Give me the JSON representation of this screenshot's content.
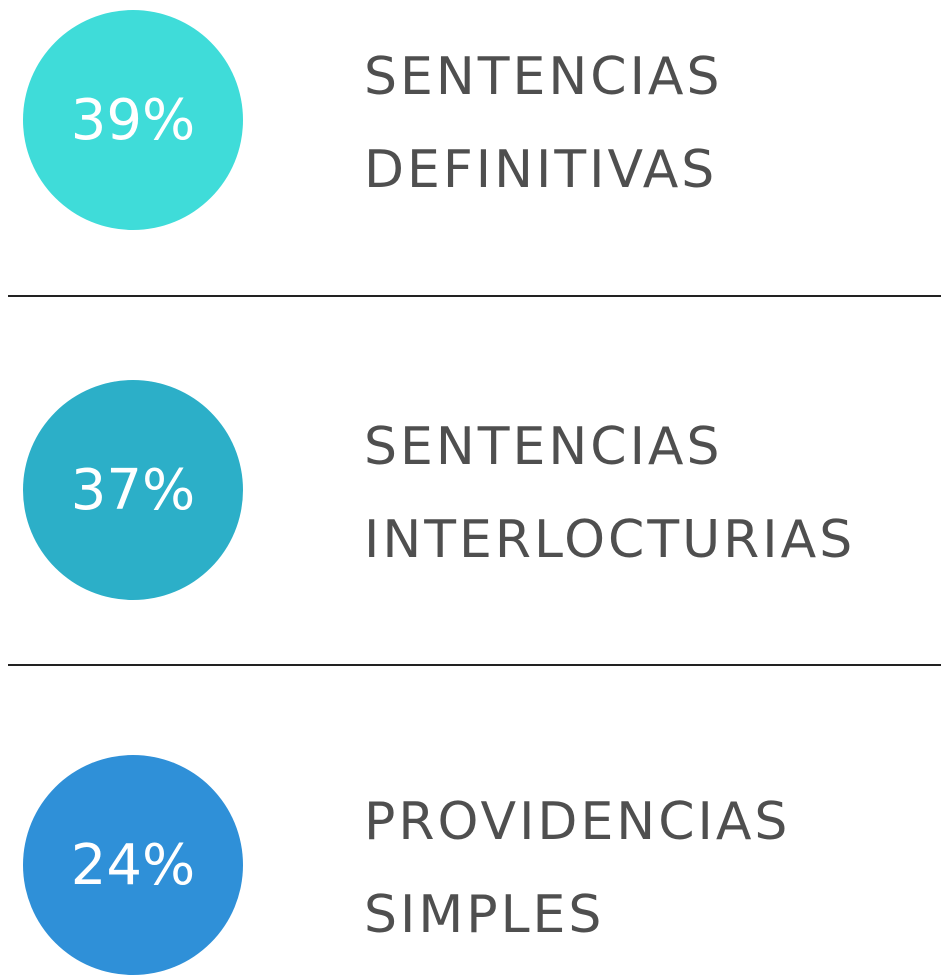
{
  "items": [
    {
      "value": "39%",
      "color": "#3fdcd9",
      "label": [
        "SENTENCIAS",
        "DEFINITIVAS"
      ]
    },
    {
      "value": "37%",
      "color": "#2cafc8",
      "label": [
        "SENTENCIAS",
        "INTERLOCTURIAS"
      ]
    },
    {
      "value": "24%",
      "color": "#2f90d8",
      "label": [
        "PROVIDENCIAS",
        "SIMPLES"
      ]
    }
  ]
}
